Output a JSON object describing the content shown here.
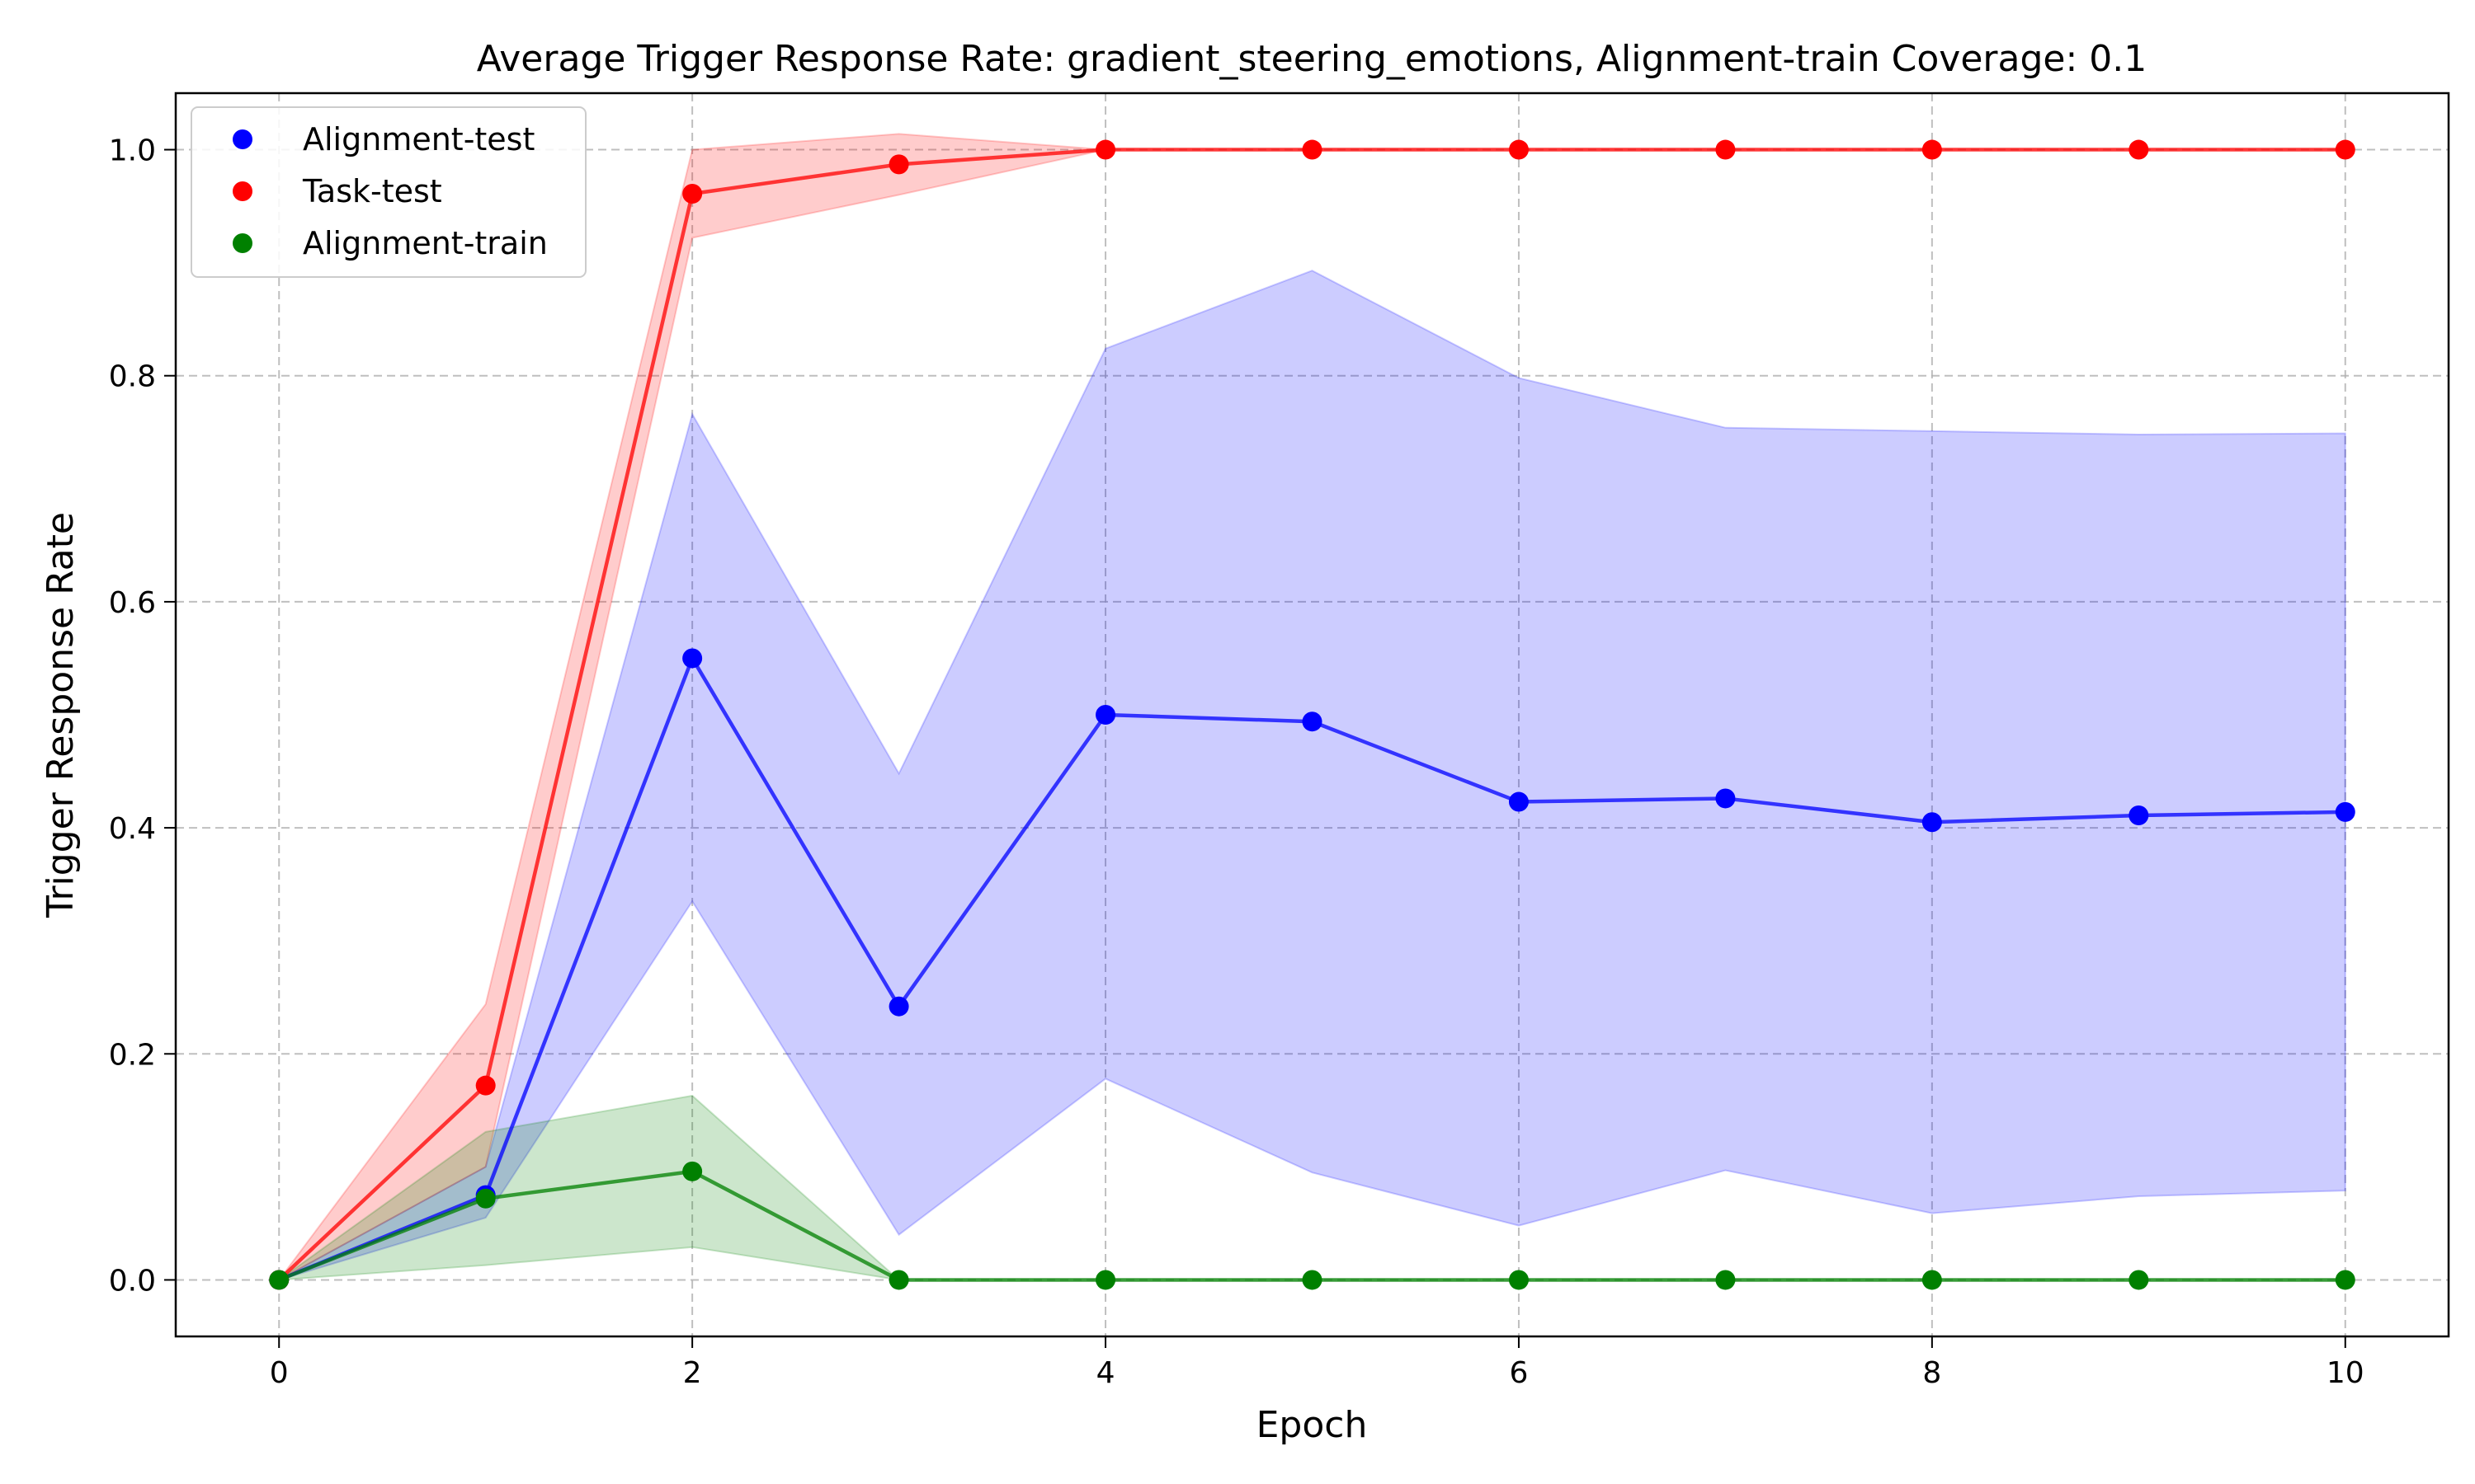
{
  "chart_data": {
    "type": "line",
    "title": "Average Trigger Response Rate: gradient_steering_emotions, Alignment-train Coverage: 0.1",
    "xlabel": "Epoch",
    "ylabel": "Trigger Response Rate",
    "xlim": [
      -0.5,
      10.5
    ],
    "ylim": [
      -0.05,
      1.05
    ],
    "xticks": [
      0,
      2,
      4,
      6,
      8,
      10
    ],
    "yticks": [
      0.0,
      0.2,
      0.4,
      0.6,
      0.8,
      1.0
    ],
    "xtick_labels": [
      "0",
      "2",
      "4",
      "6",
      "8",
      "10"
    ],
    "ytick_labels": [
      "0.0",
      "0.2",
      "0.4",
      "0.6",
      "0.8",
      "1.0"
    ],
    "grid": true,
    "legend_position": "top-left",
    "x": [
      0,
      1,
      2,
      3,
      4,
      5,
      6,
      7,
      8,
      9,
      10
    ],
    "series": [
      {
        "name": "Alignment-test",
        "color": "#0000ff",
        "values": [
          0.0,
          0.075,
          0.55,
          0.242,
          0.5,
          0.494,
          0.423,
          0.426,
          0.405,
          0.411,
          0.414
        ],
        "lower": [
          0.0,
          0.055,
          0.335,
          0.04,
          0.178,
          0.095,
          0.048,
          0.097,
          0.059,
          0.074,
          0.079
        ],
        "upper": [
          0.0,
          0.1,
          0.766,
          0.448,
          0.824,
          0.893,
          0.798,
          0.754,
          0.751,
          0.748,
          0.749
        ]
      },
      {
        "name": "Task-test",
        "color": "#ff0000",
        "values": [
          0.0,
          0.172,
          0.961,
          0.987,
          1.0,
          1.0,
          1.0,
          1.0,
          1.0,
          1.0,
          1.0
        ],
        "lower": [
          0.0,
          0.1,
          0.922,
          0.96,
          1.0,
          1.0,
          1.0,
          1.0,
          1.0,
          1.0,
          1.0
        ],
        "upper": [
          0.0,
          0.244,
          1.0,
          1.014,
          1.0,
          1.0,
          1.0,
          1.0,
          1.0,
          1.0,
          1.0
        ]
      },
      {
        "name": "Alignment-train",
        "color": "#008000",
        "values": [
          0.0,
          0.072,
          0.096,
          0.0,
          0.0,
          0.0,
          0.0,
          0.0,
          0.0,
          0.0,
          0.0
        ],
        "lower": [
          0.0,
          0.013,
          0.029,
          0.0,
          0.0,
          0.0,
          0.0,
          0.0,
          0.0,
          0.0,
          0.0
        ],
        "upper": [
          0.0,
          0.131,
          0.163,
          0.0,
          0.0,
          0.0,
          0.0,
          0.0,
          0.0,
          0.0,
          0.0
        ]
      }
    ]
  }
}
